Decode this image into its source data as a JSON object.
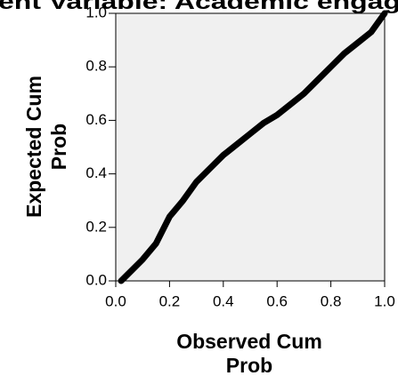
{
  "chart_data": {
    "type": "line",
    "title": "ent Variable: Academic engag",
    "x_label": [
      "Observed Cum",
      "Prob"
    ],
    "y_label": [
      "Expected Cum",
      "Prob"
    ],
    "x": [
      0.02,
      0.05,
      0.1,
      0.15,
      0.2,
      0.25,
      0.3,
      0.35,
      0.4,
      0.45,
      0.5,
      0.55,
      0.6,
      0.65,
      0.7,
      0.75,
      0.8,
      0.85,
      0.9,
      0.95,
      1.0
    ],
    "series": [
      {
        "color": "#000000",
        "values": [
          0.0,
          0.03,
          0.08,
          0.14,
          0.24,
          0.3,
          0.37,
          0.42,
          0.47,
          0.51,
          0.55,
          0.59,
          0.62,
          0.66,
          0.7,
          0.75,
          0.8,
          0.85,
          0.89,
          0.93,
          1.0
        ]
      }
    ],
    "xlim": [
      0,
      1
    ],
    "ylim": [
      0,
      1
    ],
    "xticks": [
      {
        "value": 0,
        "label": "0.0"
      },
      {
        "value": 0.2,
        "label": "0.2"
      },
      {
        "value": 0.4,
        "label": "0.4"
      },
      {
        "value": 0.6,
        "label": "0.6"
      },
      {
        "value": 0.8,
        "label": "0.8"
      },
      {
        "value": 1,
        "label": "1.0"
      }
    ],
    "yticks": [
      {
        "value": 0,
        "label": "0.0"
      },
      {
        "value": 0.2,
        "label": "0.2"
      },
      {
        "value": 0.4,
        "label": "0.4"
      },
      {
        "value": 0.6,
        "label": "0.6"
      },
      {
        "value": 0.8,
        "label": "0.8"
      },
      {
        "value": 1,
        "label": "1.0"
      }
    ],
    "plot_background": "#f0f0f0"
  }
}
